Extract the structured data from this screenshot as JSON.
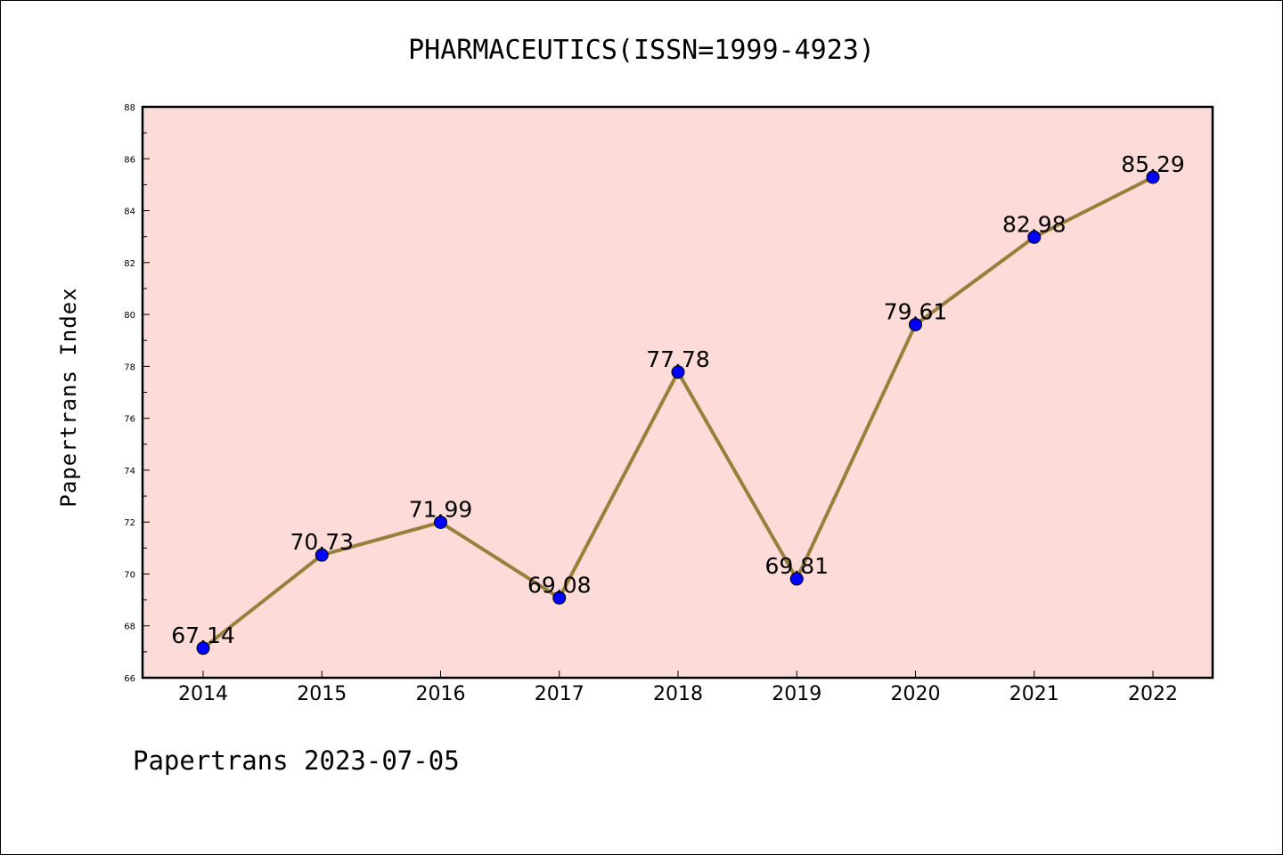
{
  "chart_data": {
    "type": "line",
    "title": "PHARMACEUTICS(ISSN=1999-4923)",
    "ylabel": "Papertrans Index",
    "xlabel": "",
    "categories": [
      "2014",
      "2015",
      "2016",
      "2017",
      "2018",
      "2019",
      "2020",
      "2021",
      "2022"
    ],
    "series": [
      {
        "values": [
          67.14,
          70.73,
          71.99,
          69.08,
          77.78,
          69.81,
          79.61,
          82.98,
          85.29
        ]
      }
    ],
    "data_labels": [
      "67.14",
      "70.73",
      "71.99",
      "69.08",
      "77.78",
      "69.81",
      "79.61",
      "82.98",
      "85.29"
    ],
    "ylim": [
      66,
      88
    ],
    "yticks": [
      "66",
      "68",
      "70",
      "72",
      "74",
      "76",
      "78",
      "80",
      "82",
      "84",
      "86",
      "88"
    ],
    "grid": false,
    "legend": "none",
    "colors": {
      "plot_background": "#fddbd8",
      "line": "#98803c",
      "marker": "#0000ff",
      "marker_edge": "#000000"
    }
  },
  "footer": {
    "text": "Papertrans 2023-07-05"
  }
}
